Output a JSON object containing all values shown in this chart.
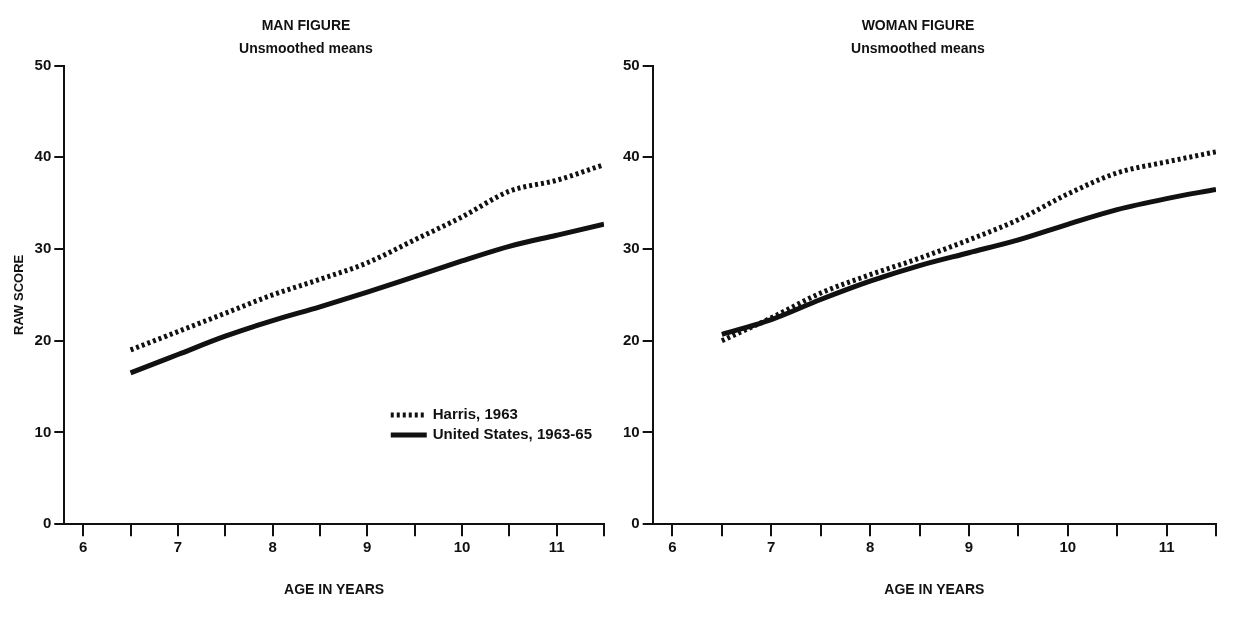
{
  "chart_data": [
    {
      "type": "line",
      "title": "MAN FIGURE",
      "subtitle": "Unsmoothed means",
      "xlabel": "AGE IN YEARS",
      "ylabel": "RAW SCORE",
      "x": [
        6.5,
        7,
        7.5,
        8,
        8.5,
        9,
        9.5,
        10,
        10.5,
        11,
        11.5
      ],
      "series": [
        {
          "name": "Harris, 1963",
          "color": "#111111",
          "line_style": "dotted",
          "values": [
            19,
            21,
            23,
            25,
            26.7,
            28.5,
            31,
            33.5,
            36.3,
            37.5,
            39.2
          ]
        },
        {
          "name": "United States, 1963-65",
          "color": "#111111",
          "line_style": "solid",
          "values": [
            16.5,
            18.5,
            20.5,
            22.2,
            23.7,
            25.3,
            27,
            28.7,
            30.3,
            31.5,
            32.7
          ]
        }
      ],
      "xlim": [
        5.8,
        11.5
      ],
      "xticks": [
        6,
        {
          "value": 6.5,
          "label": null
        },
        7,
        {
          "value": 7.5,
          "label": null
        },
        8,
        {
          "value": 8.5,
          "label": null
        },
        9,
        {
          "value": 9.5,
          "label": null
        },
        10,
        {
          "value": 10.5,
          "label": null
        },
        11,
        {
          "value": 11.5,
          "label": null
        }
      ],
      "ylim": [
        0,
        50
      ],
      "yticks": [
        0,
        10,
        20,
        30,
        40,
        50
      ],
      "grid": false,
      "legend": "right",
      "marker": "none"
    },
    {
      "type": "line",
      "title": "WOMAN FIGURE",
      "subtitle": "Unsmoothed means",
      "xlabel": "AGE IN YEARS",
      "x": [
        6.5,
        7,
        7.5,
        8,
        8.5,
        9,
        9.5,
        10,
        10.5,
        11,
        11.5
      ],
      "series": [
        {
          "color": "#111111",
          "line_style": "dotted",
          "values": [
            20,
            22.5,
            25.2,
            27.2,
            29,
            31,
            33.2,
            36,
            38.3,
            39.5,
            40.6
          ]
        },
        {
          "color": "#111111",
          "line_style": "solid",
          "values": [
            20.7,
            22.3,
            24.5,
            26.5,
            28.2,
            29.6,
            31,
            32.7,
            34.3,
            35.5,
            36.5
          ]
        }
      ],
      "xlim": [
        5.8,
        11.5
      ],
      "xticks": [
        6,
        {
          "value": 6.5,
          "label": null
        },
        7,
        {
          "value": 7.5,
          "label": null
        },
        8,
        {
          "value": 8.5,
          "label": null
        },
        9,
        {
          "value": 9.5,
          "label": null
        },
        10,
        {
          "value": 10.5,
          "label": null
        },
        11,
        {
          "value": 11.5,
          "label": null
        }
      ],
      "ylim": [
        0,
        50
      ],
      "yticks": [
        0,
        10,
        20,
        30,
        40,
        50
      ],
      "grid": false,
      "legend": false,
      "marker": "none"
    }
  ]
}
